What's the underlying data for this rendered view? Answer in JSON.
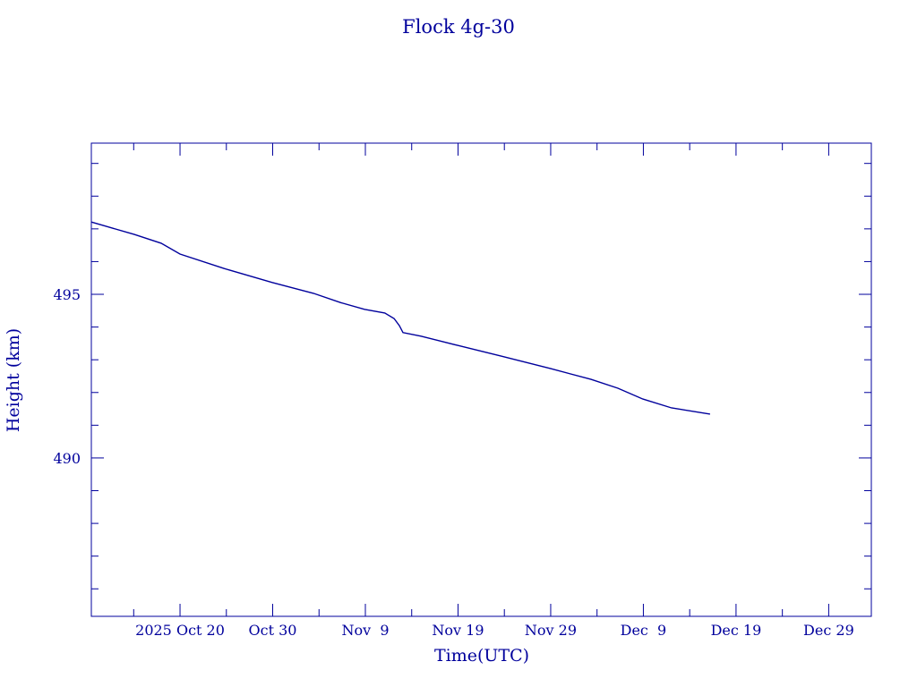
{
  "chart_data": {
    "type": "line",
    "title": "Flock 4g-30",
    "xlabel": "Time(UTC)",
    "ylabel": "Height (km)",
    "x_unit_note": "days counted from 2025 Sep 30 (Oct 20 = 20)",
    "xlim": [
      10.43,
      94.6
    ],
    "ylim": [
      485.16,
      499.62
    ],
    "x_ticks": [
      {
        "value": 20,
        "label": "2025 Oct 20"
      },
      {
        "value": 30,
        "label": "Oct 30"
      },
      {
        "value": 40,
        "label": "Nov  9"
      },
      {
        "value": 50,
        "label": "Nov 19"
      },
      {
        "value": 60,
        "label": "Nov 29"
      },
      {
        "value": 70,
        "label": "Dec  9"
      },
      {
        "value": 80,
        "label": "Dec 19"
      },
      {
        "value": 90,
        "label": "Dec 29"
      }
    ],
    "x_minor_step": 5,
    "y_ticks": [
      {
        "value": 490,
        "label": "490"
      },
      {
        "value": 495,
        "label": "495"
      }
    ],
    "y_minor_step": 1,
    "grid": false,
    "color": "#00009c",
    "series": [
      {
        "name": "Height",
        "x": [
          10.43,
          15.07,
          17.97,
          20.0,
          24.73,
          29.95,
          34.4,
          37.3,
          39.9,
          42.1,
          43.1,
          43.67,
          44.06,
          46.0,
          49.95,
          54.7,
          60.0,
          64.35,
          67.25,
          69.95,
          73.04,
          77.2
        ],
        "y": [
          497.21,
          496.83,
          496.56,
          496.23,
          495.79,
          495.36,
          495.03,
          494.75,
          494.54,
          494.43,
          494.26,
          494.04,
          493.83,
          493.72,
          493.44,
          493.11,
          492.73,
          492.4,
          492.13,
          491.8,
          491.53,
          491.34
        ]
      }
    ]
  }
}
